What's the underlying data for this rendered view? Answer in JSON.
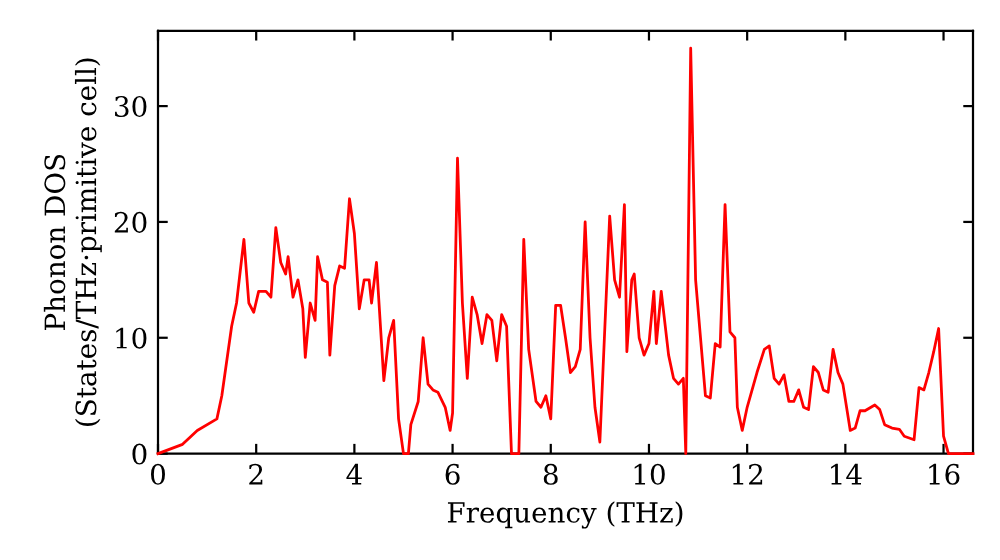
{
  "chart_data": {
    "type": "line",
    "xlabel": "Frequency (THz)",
    "ylabel": "Phonon DOS\n(States/THz·primitive cell)",
    "xlim": [
      0,
      16.6
    ],
    "ylim": [
      0,
      36.5
    ],
    "xticks": [
      0,
      2,
      4,
      6,
      8,
      10,
      12,
      14,
      16
    ],
    "yticks": [
      0,
      10,
      20,
      30
    ],
    "grid": false,
    "legend": false,
    "series": [
      {
        "color": "#ff0000",
        "x": [
          0,
          0.5,
          0.8,
          1.2,
          1.3,
          1.5,
          1.6,
          1.75,
          1.85,
          1.95,
          2.05,
          2.2,
          2.3,
          2.4,
          2.5,
          2.6,
          2.65,
          2.75,
          2.85,
          2.95,
          3.0,
          3.1,
          3.2,
          3.25,
          3.35,
          3.45,
          3.5,
          3.6,
          3.7,
          3.8,
          3.9,
          4.0,
          4.1,
          4.2,
          4.3,
          4.35,
          4.45,
          4.6,
          4.7,
          4.8,
          4.9,
          5.0,
          5.1,
          5.15,
          5.3,
          5.4,
          5.5,
          5.6,
          5.7,
          5.85,
          5.95,
          6.0,
          6.1,
          6.2,
          6.3,
          6.4,
          6.5,
          6.6,
          6.7,
          6.8,
          6.9,
          7.0,
          7.1,
          7.2,
          7.35,
          7.45,
          7.55,
          7.7,
          7.8,
          7.9,
          8.0,
          8.1,
          8.2,
          8.3,
          8.4,
          8.5,
          8.6,
          8.7,
          8.8,
          8.9,
          9.0,
          9.2,
          9.3,
          9.4,
          9.5,
          9.55,
          9.65,
          9.7,
          9.8,
          9.9,
          10.0,
          10.1,
          10.15,
          10.25,
          10.4,
          10.5,
          10.6,
          10.7,
          10.75,
          10.85,
          10.95,
          11.05,
          11.15,
          11.25,
          11.35,
          11.45,
          11.55,
          11.65,
          11.75,
          11.8,
          11.9,
          12.0,
          12.2,
          12.35,
          12.45,
          12.55,
          12.65,
          12.75,
          12.85,
          12.95,
          13.05,
          13.15,
          13.25,
          13.35,
          13.45,
          13.55,
          13.65,
          13.75,
          13.85,
          13.95,
          14.1,
          14.2,
          14.3,
          14.4,
          14.6,
          14.7,
          14.8,
          14.95,
          15.1,
          15.2,
          15.4,
          15.5,
          15.6,
          15.7,
          15.8,
          15.9,
          16.0,
          16.1,
          16.6
        ],
        "values": [
          0,
          0.8,
          2,
          3,
          5,
          11,
          13,
          18.5,
          13,
          12.2,
          14,
          14,
          13.5,
          19.5,
          16.5,
          15.5,
          17,
          13.5,
          15,
          12.5,
          8.3,
          13,
          11.5,
          17,
          15,
          14.8,
          8.5,
          14.5,
          16.2,
          16,
          22,
          19,
          12.5,
          15,
          15,
          13,
          16.5,
          6.3,
          10,
          11.5,
          3,
          0,
          0,
          2.5,
          4.5,
          10,
          6,
          5.5,
          5.3,
          4,
          2,
          3.5,
          25.5,
          13,
          6.5,
          13.5,
          12,
          9.5,
          12,
          11.5,
          8,
          12,
          11,
          0,
          0,
          18.5,
          9,
          4.5,
          4,
          5,
          3,
          12.8,
          12.8,
          10,
          7,
          7.5,
          9,
          20,
          10,
          4,
          1,
          20.5,
          15,
          13.5,
          21.5,
          8.8,
          15,
          15.5,
          10,
          8.5,
          9.5,
          14,
          9.5,
          14,
          8.5,
          6.5,
          6,
          6.5,
          0,
          35,
          15,
          10,
          5,
          4.8,
          9.5,
          9.2,
          21.5,
          10.5,
          10,
          4,
          2,
          4,
          7,
          9,
          9.3,
          6.5,
          6,
          6.8,
          4.5,
          4.5,
          5.5,
          4,
          3.8,
          7.5,
          7,
          5.5,
          5.3,
          9,
          7,
          6,
          2,
          2.2,
          3.7,
          3.7,
          4.2,
          3.8,
          2.5,
          2.2,
          2.1,
          1.5,
          1.2,
          5.7,
          5.5,
          7,
          8.8,
          10.8,
          1.5,
          0,
          0
        ]
      }
    ]
  }
}
